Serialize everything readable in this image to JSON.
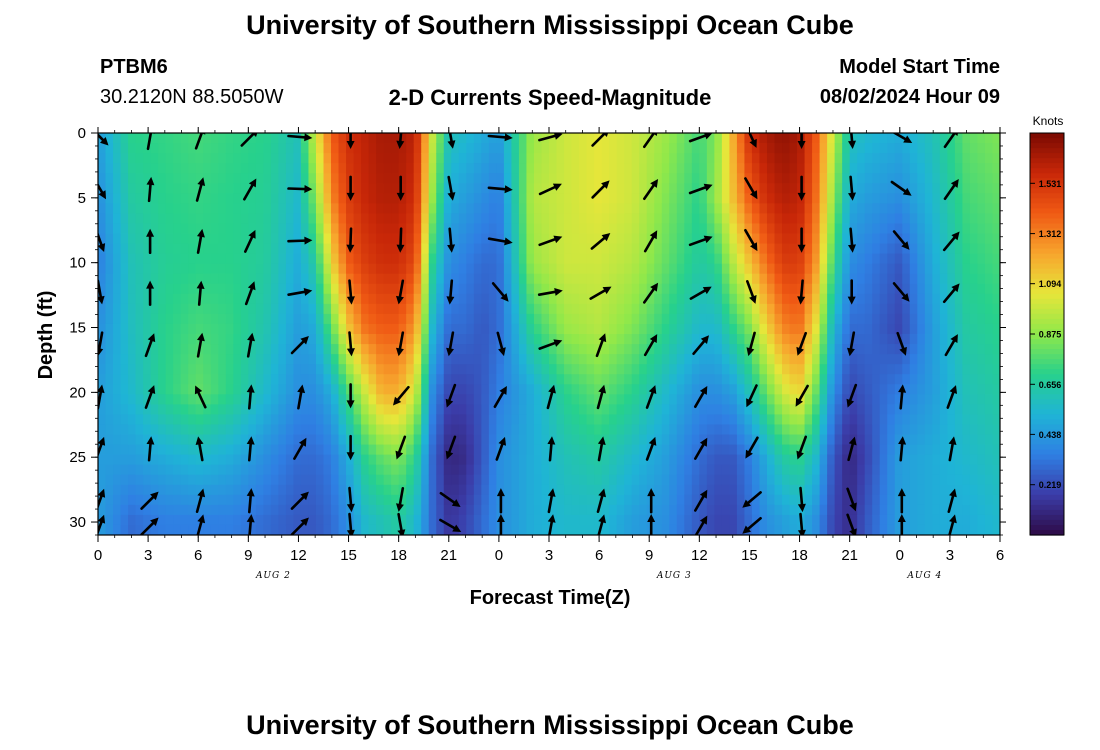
{
  "header": {
    "title": "University of Southern Mississippi Ocean Cube",
    "station": "PTBM6",
    "coords": "30.2120N  88.5050W",
    "chart_title": "2-D Currents Speed-Magnitude",
    "model_label": "Model Start Time",
    "model_time": "08/02/2024 Hour 09"
  },
  "footer": {
    "title": "University of Southern Mississippi Ocean Cube"
  },
  "chart_data": {
    "type": "heatmap",
    "title": "2-D Currents Speed-Magnitude",
    "xlabel": "Forecast Time(Z)",
    "ylabel": "Depth (ft)",
    "x_ticks": [
      "0",
      "3",
      "6",
      "9",
      "12",
      "15",
      "18",
      "21",
      "0",
      "3",
      "6",
      "9",
      "12",
      "15",
      "18",
      "21",
      "0",
      "3",
      "6"
    ],
    "date_labels": [
      {
        "label": "AUG 2",
        "at_tick_index": 3.5
      },
      {
        "label": "AUG 3",
        "at_tick_index": 11.5
      },
      {
        "label": "AUG 4",
        "at_tick_index": 16.5
      }
    ],
    "y_ticks": [
      0,
      5,
      10,
      15,
      20,
      25,
      30
    ],
    "ylim": [
      0,
      31
    ],
    "y_inverted": true,
    "xlim_hours": [
      0,
      54
    ],
    "colorbar": {
      "label": "Knots",
      "ticks": [
        "1.531",
        "1.312",
        "1.094",
        "0.875",
        "0.656",
        "0.438",
        "0.219"
      ],
      "range": [
        0,
        1.75
      ],
      "colors": [
        "#2d0a45",
        "#3b3ca8",
        "#2f7fe3",
        "#1fb4d6",
        "#27d18c",
        "#8fe84a",
        "#e6e63a",
        "#f7a52d",
        "#f05a14",
        "#c82708",
        "#7a0a02"
      ]
    },
    "speed_profiles": {
      "hours": [
        0,
        2,
        4,
        6,
        8,
        10,
        12,
        13,
        14,
        15,
        16,
        17,
        18,
        19,
        20,
        21,
        22,
        23,
        24,
        26,
        28,
        30,
        32,
        34,
        36,
        37,
        38,
        39,
        40,
        41,
        42,
        43,
        44,
        45,
        46,
        48,
        50,
        52,
        54
      ],
      "depths_ft": [
        0,
        5,
        10,
        15,
        20,
        25,
        30
      ],
      "speeds": [
        [
          0.45,
          0.4,
          0.35,
          0.4,
          0.45,
          0.45,
          0.45
        ],
        [
          0.7,
          0.65,
          0.6,
          0.58,
          0.55,
          0.45,
          0.3
        ],
        [
          0.72,
          0.7,
          0.68,
          0.7,
          0.7,
          0.5,
          0.35
        ],
        [
          0.75,
          0.72,
          0.7,
          0.75,
          0.8,
          0.55,
          0.35
        ],
        [
          0.72,
          0.7,
          0.7,
          0.72,
          0.7,
          0.5,
          0.35
        ],
        [
          0.7,
          0.68,
          0.66,
          0.62,
          0.55,
          0.4,
          0.3
        ],
        [
          0.6,
          0.55,
          0.5,
          0.45,
          0.4,
          0.3,
          0.25
        ],
        [
          1.0,
          0.85,
          0.65,
          0.5,
          0.4,
          0.3,
          0.25
        ],
        [
          1.4,
          1.3,
          1.1,
          0.8,
          0.5,
          0.35,
          0.3
        ],
        [
          1.55,
          1.5,
          1.4,
          1.15,
          0.75,
          0.5,
          0.4
        ],
        [
          1.6,
          1.58,
          1.5,
          1.35,
          1.0,
          0.7,
          0.55
        ],
        [
          1.65,
          1.62,
          1.55,
          1.4,
          1.2,
          0.8,
          0.6
        ],
        [
          1.65,
          1.62,
          1.55,
          1.4,
          1.2,
          0.85,
          0.65
        ],
        [
          1.6,
          1.55,
          1.45,
          1.25,
          1.0,
          0.7,
          0.55
        ],
        [
          1.0,
          0.9,
          0.7,
          0.55,
          0.4,
          0.3,
          0.3
        ],
        [
          0.6,
          0.5,
          0.4,
          0.3,
          0.2,
          0.1,
          0.15
        ],
        [
          0.55,
          0.45,
          0.35,
          0.3,
          0.2,
          0.12,
          0.2
        ],
        [
          0.5,
          0.4,
          0.3,
          0.25,
          0.25,
          0.25,
          0.3
        ],
        [
          0.45,
          0.35,
          0.3,
          0.3,
          0.35,
          0.4,
          0.4
        ],
        [
          0.9,
          0.95,
          0.9,
          0.7,
          0.5,
          0.5,
          0.5
        ],
        [
          1.0,
          1.0,
          1.0,
          0.9,
          0.7,
          0.6,
          0.55
        ],
        [
          1.05,
          1.05,
          1.0,
          0.95,
          0.8,
          0.65,
          0.55
        ],
        [
          1.0,
          1.0,
          0.95,
          0.85,
          0.7,
          0.55,
          0.45
        ],
        [
          0.9,
          0.85,
          0.8,
          0.7,
          0.55,
          0.45,
          0.4
        ],
        [
          0.75,
          0.7,
          0.65,
          0.55,
          0.4,
          0.3,
          0.25
        ],
        [
          0.85,
          0.9,
          0.7,
          0.55,
          0.4,
          0.25,
          0.2
        ],
        [
          1.2,
          1.15,
          0.95,
          0.7,
          0.45,
          0.25,
          0.2
        ],
        [
          1.55,
          1.4,
          1.15,
          0.85,
          0.6,
          0.35,
          0.3
        ],
        [
          1.65,
          1.55,
          1.35,
          1.1,
          0.8,
          0.5,
          0.4
        ],
        [
          1.7,
          1.62,
          1.5,
          1.3,
          1.0,
          0.65,
          0.45
        ],
        [
          1.65,
          1.6,
          1.5,
          1.35,
          1.1,
          0.7,
          0.5
        ],
        [
          1.4,
          1.35,
          1.25,
          1.05,
          0.8,
          0.55,
          0.4
        ],
        [
          1.0,
          0.9,
          0.75,
          0.55,
          0.4,
          0.25,
          0.2
        ],
        [
          0.6,
          0.5,
          0.4,
          0.3,
          0.2,
          0.1,
          0.12
        ],
        [
          0.55,
          0.45,
          0.35,
          0.3,
          0.25,
          0.2,
          0.25
        ],
        [
          0.5,
          0.4,
          0.25,
          0.2,
          0.35,
          0.45,
          0.45
        ],
        [
          0.6,
          0.55,
          0.5,
          0.45,
          0.45,
          0.5,
          0.5
        ],
        [
          0.8,
          0.75,
          0.7,
          0.65,
          0.6,
          0.55,
          0.5
        ],
        [
          0.85,
          0.8,
          0.75,
          0.7,
          0.65,
          0.6,
          0.55
        ]
      ]
    },
    "current_vectors": {
      "hours": [
        0,
        3,
        6,
        9,
        12,
        15,
        18,
        21,
        24,
        27,
        30,
        33,
        36,
        39,
        42,
        45,
        48,
        51
      ],
      "depths_ft": [
        0,
        4,
        8,
        12,
        16,
        20,
        24,
        28,
        30
      ],
      "direction_deg": [
        [
          135,
          10,
          20,
          45,
          95,
          180,
          185,
          170,
          95,
          75,
          45,
          35,
          70,
          155,
          180,
          175,
          120,
          35
        ],
        [
          150,
          5,
          15,
          30,
          92,
          180,
          180,
          170,
          95,
          65,
          45,
          35,
          70,
          150,
          180,
          175,
          125,
          35
        ],
        [
          160,
          0,
          10,
          25,
          88,
          182,
          182,
          175,
          100,
          70,
          50,
          30,
          70,
          150,
          180,
          175,
          140,
          40
        ],
        [
          170,
          0,
          5,
          20,
          80,
          175,
          190,
          185,
          140,
          80,
          60,
          35,
          60,
          160,
          185,
          180,
          140,
          40
        ],
        [
          190,
          20,
          10,
          10,
          45,
          175,
          190,
          190,
          165,
          70,
          20,
          30,
          40,
          195,
          200,
          190,
          160,
          30
        ],
        [
          10,
          20,
          335,
          5,
          10,
          180,
          220,
          200,
          30,
          15,
          15,
          20,
          30,
          205,
          210,
          200,
          5,
          20
        ],
        [
          20,
          5,
          350,
          5,
          30,
          180,
          200,
          200,
          20,
          5,
          10,
          20,
          30,
          210,
          200,
          15,
          5,
          10
        ],
        [
          20,
          45,
          15,
          5,
          45,
          175,
          190,
          125,
          0,
          10,
          15,
          0,
          30,
          230,
          175,
          160,
          0,
          15
        ],
        [
          20,
          45,
          15,
          5,
          45,
          175,
          170,
          120,
          0,
          10,
          15,
          0,
          30,
          230,
          175,
          160,
          0,
          15
        ]
      ]
    }
  }
}
